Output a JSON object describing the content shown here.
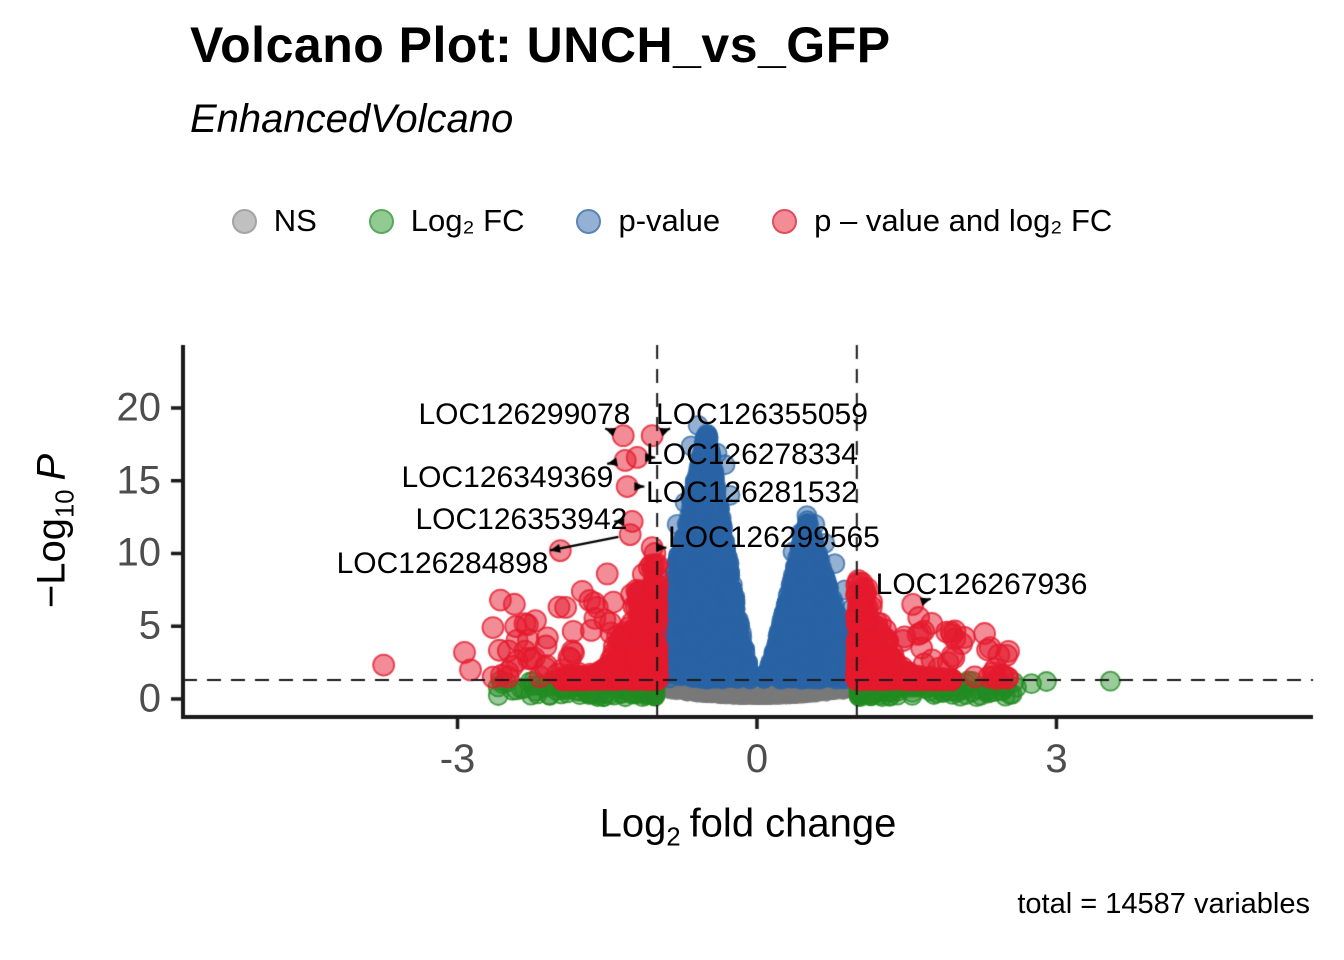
{
  "header": {
    "title": "Volcano Plot: UNCH_vs_GFP",
    "subtitle": "EnhancedVolcano"
  },
  "caption": "total = 14587 variables",
  "legend": {
    "items": [
      {
        "key": "ns",
        "label": "NS",
        "fill": "#c0c0c0",
        "stroke": "#a3a3a3"
      },
      {
        "key": "fc",
        "label": "Log₂ FC",
        "fill": "#92cb92",
        "stroke": "#58a85e"
      },
      {
        "key": "p",
        "label": "p-value",
        "fill": "#94b1d5",
        "stroke": "#5b83b4"
      },
      {
        "key": "fc_p",
        "label": "p – value and log₂ FC",
        "fill": "#f28c96",
        "stroke": "#e44a57"
      }
    ]
  },
  "axes": {
    "y": {
      "prefix": "−Log",
      "sub": "10",
      "italic": "P"
    },
    "x": {
      "prefix": "Log",
      "sub": "2",
      "rest": "fold change"
    }
  },
  "chart_data": {
    "type": "scatter",
    "title": "Volcano Plot: UNCH_vs_GFP",
    "subtitle": "EnhancedVolcano",
    "xlabel": "Log2 fold change",
    "ylabel": "-Log10 P",
    "caption": "total = 14587 variables",
    "total_variables": 14587,
    "xlim": [
      -5.75,
      5.57
    ],
    "ylim": [
      -1.24,
      24.33
    ],
    "x_ticks": [
      -3,
      0,
      3
    ],
    "y_ticks": [
      0,
      5,
      10,
      15,
      20
    ],
    "grid": false,
    "legend_position": "top",
    "legend_labels": [
      "NS",
      "Log2 FC",
      "p-value",
      "p - value and log2 FC"
    ],
    "thresholds": {
      "p_cutoff_y": 1.3,
      "fc_cutoff_x": [
        -1,
        1
      ]
    },
    "labeled_genes": [
      {
        "name": "LOC126299078",
        "point": [
          -1.34,
          18.1
        ],
        "label": [
          -2.33,
          19.55
        ]
      },
      {
        "name": "LOC126355059",
        "point": [
          -1.05,
          18.1
        ],
        "label": [
          0.05,
          19.55
        ]
      },
      {
        "name": "LOC126278334",
        "point": [
          -1.2,
          16.6
        ],
        "label": [
          -0.05,
          16.75
        ]
      },
      {
        "name": "LOC126349369",
        "point": [
          -1.32,
          16.4
        ],
        "label": [
          -2.5,
          15.2
        ]
      },
      {
        "name": "LOC126281532",
        "point": [
          -1.3,
          14.6
        ],
        "label": [
          -0.05,
          14.15
        ]
      },
      {
        "name": "LOC126353942",
        "point": [
          -1.25,
          12.2
        ],
        "label": [
          -2.36,
          12.3
        ]
      },
      {
        "name": "LOC126284898",
        "point": [
          -1.27,
          11.3
        ],
        "label": [
          -3.15,
          9.25
        ]
      },
      {
        "name": "LOC126299565",
        "point": [
          -1.05,
          10.4
        ],
        "label": [
          0.17,
          11.05
        ]
      },
      {
        "name": "LOC126267936",
        "point": [
          1.56,
          6.5
        ],
        "label": [
          2.25,
          7.85
        ]
      }
    ],
    "point_cloud": {
      "seed": 20240613,
      "style": {
        "ns": {
          "color": "#7a7a7a",
          "fill_alpha": 0.45,
          "stroke_alpha": 0.6,
          "radius": 6
        },
        "fc": {
          "color": "#228b22",
          "fill_alpha": 0.45,
          "stroke_alpha": 0.8,
          "radius": 9.5
        },
        "p": {
          "color": "#2a64a5",
          "fill_alpha": 0.5,
          "stroke_alpha": 0.75,
          "radius": 9.5
        },
        "fc_p": {
          "color": "#e51a2d",
          "fill_alpha": 0.5,
          "stroke_alpha": 0.8,
          "radius": 10.5
        }
      },
      "clusters": [
        {
          "kind": "dome",
          "group": "ns",
          "n": 5000,
          "x_mean": 0,
          "x_sd": 0.4,
          "x_clip": [
            -1.03,
            1.03
          ],
          "y_top": 1.31,
          "y_base": 0.05,
          "y_curve": 0.5
        },
        {
          "kind": "peak",
          "group": "p",
          "n": 2400,
          "x_mean": -0.5,
          "x_sd": 0.17,
          "x_clip": [
            -1.0,
            -0.07
          ],
          "apex": 18.6,
          "hw_out": 0.62,
          "hw_in": 0.45,
          "y_floor": 1.36,
          "exponent": 1.15
        },
        {
          "kind": "peak",
          "group": "p",
          "n": 1500,
          "x_mean": 0.5,
          "x_sd": 0.16,
          "x_clip": [
            0.07,
            1.0
          ],
          "apex": 12.4,
          "hw_out": 0.55,
          "hw_in": 0.42,
          "y_floor": 1.36,
          "exponent": 1.1
        },
        {
          "kind": "strip",
          "group": "fc",
          "n": 130,
          "side": -1,
          "x_min": 1.02,
          "x_max": 2.6,
          "x_pow": 2.0,
          "y_min": 0.15,
          "y_max": 1.3
        },
        {
          "kind": "strip",
          "group": "fc",
          "n": 170,
          "side": 1,
          "x_min": 1.02,
          "x_max": 2.6,
          "x_pow": 2.0,
          "y_min": 0.15,
          "y_max": 1.3
        },
        {
          "kind": "wedge",
          "group": "fc_p",
          "n": 330,
          "side": -1,
          "x_start": 1.0,
          "x_span": 0.95,
          "x_pow": 2.2,
          "y_floor": 1.35,
          "amp": 8.8,
          "decay": 0.12,
          "y_pow": 2.2
        },
        {
          "kind": "wedge",
          "group": "fc_p",
          "n": 300,
          "side": 1,
          "x_start": 1.0,
          "x_span": 0.95,
          "x_pow": 2.2,
          "y_floor": 1.35,
          "amp": 7.0,
          "decay": 0.1,
          "y_pow": 2.2
        },
        {
          "kind": "scatter",
          "group": "fc_p",
          "n": 60,
          "side": -1,
          "x_min": 1.1,
          "x_max": 2.65,
          "y_min": 1.5,
          "y_span": 6.0,
          "y_pow": 2.0
        },
        {
          "kind": "scatter",
          "group": "fc_p",
          "n": 45,
          "side": 1,
          "x_min": 1.05,
          "x_max": 2.55,
          "y_min": 1.4,
          "y_span": 3.4,
          "y_pow": 1.8
        },
        {
          "kind": "explicit",
          "group": "p",
          "points": [
            [
              -0.59,
              18.8
            ],
            [
              -0.5,
              18.2
            ],
            [
              -0.66,
              17.4
            ],
            [
              -0.4,
              16.9
            ],
            [
              -0.32,
              16.1
            ],
            [
              -0.62,
              15.0
            ],
            [
              -0.48,
              14.6
            ],
            [
              -0.27,
              14.0
            ],
            [
              -0.72,
              13.5
            ],
            [
              -0.55,
              13.0
            ],
            [
              -0.8,
              12.0
            ],
            [
              0.5,
              12.6
            ],
            [
              0.58,
              12.0
            ],
            [
              0.44,
              11.4
            ],
            [
              0.68,
              10.7
            ],
            [
              0.36,
              10.1
            ],
            [
              0.78,
              9.3
            ],
            [
              0.88,
              7.5
            ],
            [
              0.95,
              6.2
            ],
            [
              0.83,
              5.0
            ],
            [
              0.98,
              4.1
            ]
          ]
        },
        {
          "kind": "explicit",
          "group": "fc",
          "points": [
            [
              -2.45,
              0.6
            ],
            [
              -2.55,
              1.05
            ],
            [
              -2.2,
              0.35
            ],
            [
              2.3,
              0.55
            ],
            [
              2.45,
              1.0
            ],
            [
              2.6,
              0.8
            ],
            [
              2.75,
              1.05
            ],
            [
              2.9,
              1.2
            ],
            [
              3.54,
              1.22
            ]
          ]
        },
        {
          "kind": "explicit",
          "group": "fc_p",
          "points": [
            [
              -3.74,
              2.33
            ],
            [
              -2.93,
              3.2
            ],
            [
              -2.87,
              2.0
            ],
            [
              -2.57,
              6.8
            ],
            [
              -2.3,
              5.1
            ],
            [
              -1.97,
              10.2
            ],
            [
              -1.75,
              7.4
            ],
            [
              -1.6,
              6.3
            ],
            [
              -2.1,
              4.2
            ],
            [
              -1.85,
              3.3
            ],
            [
              -1.5,
              8.6
            ],
            [
              -1.34,
              18.1
            ],
            [
              -1.05,
              18.1
            ],
            [
              -1.2,
              16.6
            ],
            [
              -1.32,
              16.4
            ],
            [
              -1.3,
              14.6
            ],
            [
              -1.25,
              12.2
            ],
            [
              -1.27,
              11.3
            ],
            [
              -1.05,
              10.4
            ],
            [
              1.56,
              6.5
            ],
            [
              1.62,
              5.6
            ],
            [
              1.75,
              5.2
            ],
            [
              1.9,
              4.6
            ],
            [
              2.28,
              4.5
            ],
            [
              2.05,
              3.8
            ],
            [
              2.5,
              3.0
            ]
          ]
        }
      ]
    }
  }
}
